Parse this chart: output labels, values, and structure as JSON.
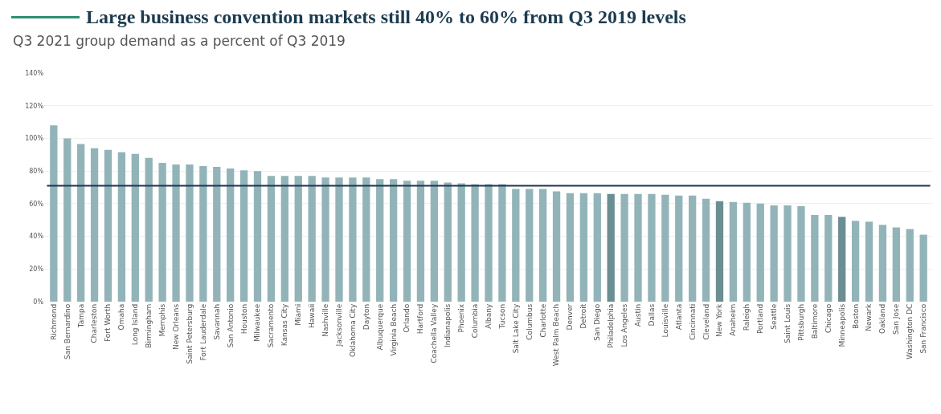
{
  "chart_data": {
    "type": "bar",
    "title": "Large business convention markets still 40% to 60% from Q3 2019 levels",
    "subtitle": "Q3 2021 group demand as a percent of Q3 2019",
    "categories": [
      "Richmond",
      "San Bernardino",
      "Tampa",
      "Charleston",
      "Fort Worth",
      "Omaha",
      "Long Island",
      "Birmingham",
      "Memphis",
      "New Orleans",
      "Saint Petersburg",
      "Fort Lauderdale",
      "Savannah",
      "San Antonio",
      "Houston",
      "Milwaukee",
      "Sacramento",
      "Kansas City",
      "Miami",
      "Hawaii",
      "Nashville",
      "Jacksonville",
      "Oklahoma City",
      "Dayton",
      "Albuquerque",
      "Virginia Beach",
      "Orlando",
      "Hartford",
      "Coachella Valley",
      "Indianapolis",
      "Phoenix",
      "Columbia",
      "Albany",
      "Tucson",
      "Salt Lake City",
      "Columbus",
      "Charlotte",
      "West Palm Beach",
      "Denver",
      "Detroit",
      "San Diego",
      "Philadelphia",
      "Los Angeles",
      "Austin",
      "Dallas",
      "Louisville",
      "Atlanta",
      "Cincinnati",
      "Cleveland",
      "New York",
      "Anaheim",
      "Raleigh",
      "Portland",
      "Seattle",
      "Saint Louis",
      "Pittsburgh",
      "Baltimore",
      "Chicago",
      "Minneapolis",
      "Boston",
      "Newark",
      "Oakland",
      "San Jose",
      "Washington DC",
      "San Francisco"
    ],
    "values": [
      108,
      100,
      96.5,
      94,
      93,
      91.5,
      90.5,
      88,
      85,
      84,
      84,
      83,
      82.5,
      81.5,
      80.5,
      80,
      77,
      77,
      77,
      77,
      76,
      76,
      76,
      76,
      75,
      75,
      74,
      74,
      74,
      73,
      72.5,
      72,
      72,
      72,
      69,
      69,
      69,
      67.5,
      66.5,
      66.5,
      66.5,
      66,
      66,
      66,
      66,
      65.5,
      65,
      65,
      63,
      61.5,
      61,
      60.5,
      60,
      59,
      59,
      58.5,
      53,
      53,
      52,
      49.5,
      49,
      47,
      45.5,
      44.5,
      41
    ],
    "colors": [
      "#92b4b9",
      "#92b4b9",
      "#92b4b9",
      "#92b4b9",
      "#92b4b9",
      "#92b4b9",
      "#92b4b9",
      "#92b4b9",
      "#92b4b9",
      "#92b4b9",
      "#92b4b9",
      "#92b4b9",
      "#92b4b9",
      "#92b4b9",
      "#92b4b9",
      "#92b4b9",
      "#92b4b9",
      "#92b4b9",
      "#92b4b9",
      "#92b4b9",
      "#92b4b9",
      "#92b4b9",
      "#92b4b9",
      "#92b4b9",
      "#92b4b9",
      "#92b4b9",
      "#92b4b9",
      "#92b4b9",
      "#92b4b9",
      "#92b4b9",
      "#92b4b9",
      "#92b4b9",
      "#92b4b9",
      "#92b4b9",
      "#92b4b9",
      "#92b4b9",
      "#92b4b9",
      "#92b4b9",
      "#92b4b9",
      "#92b4b9",
      "#92b4b9",
      "#6b8e92",
      "#92b4b9",
      "#92b4b9",
      "#92b4b9",
      "#92b4b9",
      "#92b4b9",
      "#92b4b9",
      "#92b4b9",
      "#6b8e92",
      "#92b4b9",
      "#92b4b9",
      "#92b4b9",
      "#92b4b9",
      "#92b4b9",
      "#92b4b9",
      "#92b4b9",
      "#92b4b9",
      "#6b8e92",
      "#92b4b9",
      "#92b4b9",
      "#92b4b9",
      "#92b4b9",
      "#92b4b9",
      "#92b4b9"
    ],
    "ylim": [
      0,
      140
    ],
    "yticks": [
      {
        "value": 0,
        "label": "0%"
      },
      {
        "value": 20,
        "label": "20%"
      },
      {
        "value": 40,
        "label": "40%"
      },
      {
        "value": 60,
        "label": "60%"
      },
      {
        "value": 80,
        "label": "80%"
      },
      {
        "value": 100,
        "label": "100%"
      },
      {
        "value": 120,
        "label": "120%"
      },
      {
        "value": 140,
        "label": "140%"
      }
    ],
    "grid": "y",
    "ref_lines": [
      {
        "axis": "y",
        "value": 71,
        "color": "#1f3550"
      }
    ]
  }
}
